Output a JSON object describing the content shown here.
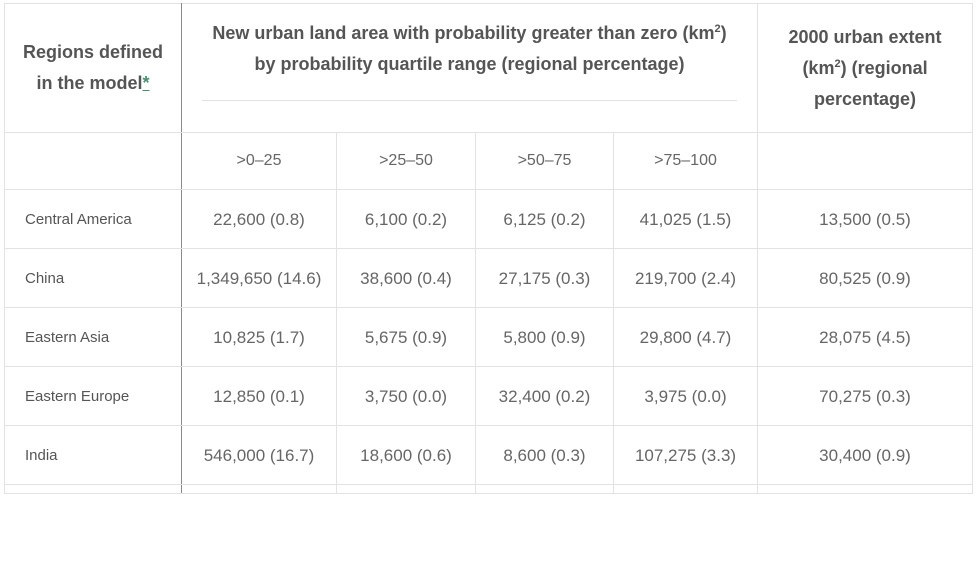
{
  "header": {
    "region_col": "Regions defined in the model",
    "region_link": "*",
    "main_col_pre": "New urban land area with probability greater than zero (km",
    "main_col_sup": "2",
    "main_col_post": ") by probability quartile range (regional percentage)",
    "extent_col_pre": "2000 urban extent (km",
    "extent_col_sup": "2",
    "extent_col_post": ") (regional percentage)"
  },
  "quartiles": [
    ">0–25",
    ">25–50",
    ">50–75",
    ">75–100"
  ],
  "rows": [
    {
      "region": "Central America",
      "q1": "22,600 (0.8)",
      "q2": "6,100 (0.2)",
      "q3": "6,125 (0.2)",
      "q4": "41,025 (1.5)",
      "extent": "13,500 (0.5)"
    },
    {
      "region": "China",
      "q1": "1,349,650 (14.6)",
      "q2": "38,600 (0.4)",
      "q3": "27,175 (0.3)",
      "q4": "219,700 (2.4)",
      "extent": "80,525 (0.9)"
    },
    {
      "region": "Eastern Asia",
      "q1": "10,825 (1.7)",
      "q2": "5,675 (0.9)",
      "q3": "5,800 (0.9)",
      "q4": "29,800 (4.7)",
      "extent": "28,075 (4.5)"
    },
    {
      "region": "Eastern Europe",
      "q1": "12,850 (0.1)",
      "q2": "3,750 (0.0)",
      "q3": "32,400 (0.2)",
      "q4": "3,975 (0.0)",
      "extent": "70,275 (0.3)"
    },
    {
      "region": "India",
      "q1": "546,000 (16.7)",
      "q2": "18,600 (0.6)",
      "q3": "8,600 (0.3)",
      "q4": "107,275 (3.3)",
      "extent": "30,400 (0.9)"
    }
  ]
}
